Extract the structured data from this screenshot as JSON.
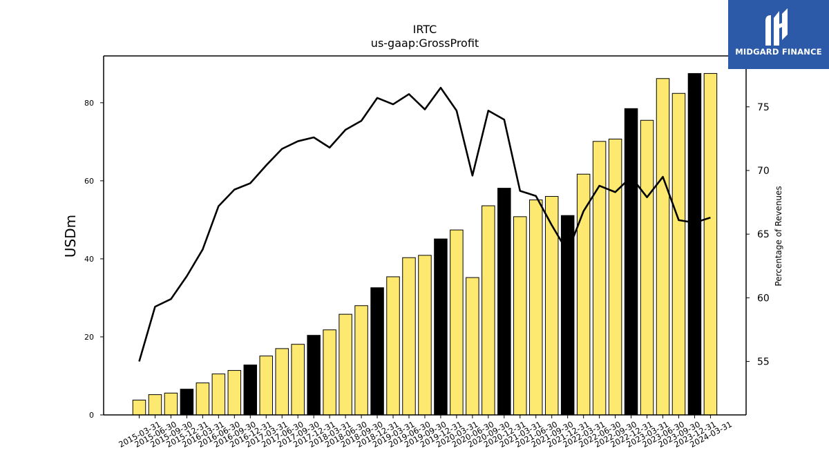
{
  "chart_data": {
    "type": "bar",
    "title": "IRTC",
    "subtitle": "us-gaap:GrossProfit",
    "ylabel": "USDm",
    "y2label": "Percentage of Revenues",
    "ylim": [
      0,
      92
    ],
    "y2lim": [
      50.8,
      79.0
    ],
    "yticks": [
      0,
      20,
      40,
      60,
      80
    ],
    "y2ticks": [
      55,
      60,
      65,
      70,
      75
    ],
    "categories": [
      "2015-03-31",
      "2015-06-30",
      "2015-09-30",
      "2015-12-31",
      "2016-03-31",
      "2016-06-30",
      "2016-09-30",
      "2016-12-31",
      "2017-03-31",
      "2017-06-30",
      "2017-09-30",
      "2017-12-31",
      "2018-03-31",
      "2018-06-30",
      "2018-09-30",
      "2018-12-31",
      "2019-03-31",
      "2019-06-30",
      "2019-09-30",
      "2019-12-31",
      "2020-03-31",
      "2020-06-30",
      "2020-09-30",
      "2020-12-31",
      "2021-03-31",
      "2021-06-30",
      "2021-09-30",
      "2021-12-31",
      "2022-03-31",
      "2022-06-30",
      "2022-09-30",
      "2022-12-31",
      "2023-03-31",
      "2023-06-30",
      "2023-09-30",
      "2023-12-31",
      "2024-03-31"
    ],
    "series": [
      {
        "kind": "bar",
        "values": [
          3.8,
          5.2,
          5.6,
          6.6,
          8.2,
          10.5,
          11.4,
          12.8,
          15.1,
          17.0,
          18.1,
          20.4,
          21.8,
          25.8,
          28.0,
          32.6,
          35.4,
          40.3,
          40.9,
          45.1,
          47.4,
          35.2,
          53.6,
          58.1,
          50.8,
          55.1,
          56.0,
          51.1,
          61.7,
          70.1,
          70.7,
          78.5,
          75.5,
          86.2,
          82.4,
          87.5,
          87.5
        ],
        "highlight": [
          false,
          false,
          false,
          true,
          false,
          false,
          false,
          true,
          false,
          false,
          false,
          true,
          false,
          false,
          false,
          true,
          false,
          false,
          false,
          true,
          false,
          false,
          false,
          true,
          false,
          false,
          false,
          true,
          false,
          false,
          false,
          true,
          false,
          false,
          false,
          true,
          false
        ],
        "color": "#fde870",
        "highlight_color": "#000000"
      },
      {
        "kind": "line",
        "axis": "right",
        "values": [
          55.0,
          59.3,
          59.9,
          61.7,
          63.8,
          67.2,
          68.5,
          69.0,
          70.4,
          71.7,
          72.3,
          72.6,
          71.8,
          73.2,
          73.9,
          75.7,
          75.2,
          76.0,
          74.8,
          76.5,
          74.7,
          69.6,
          74.7,
          74.0,
          68.4,
          68.0,
          65.7,
          63.6,
          66.8,
          68.8,
          68.3,
          69.5,
          67.9,
          69.5,
          66.1,
          65.9,
          66.3
        ],
        "color": "#000000"
      }
    ],
    "grid": false,
    "legend": "none"
  },
  "logo": {
    "text": "MIDGARD FINANCE",
    "icon": "midgard-logo-icon",
    "background": "#2c5aa8"
  }
}
